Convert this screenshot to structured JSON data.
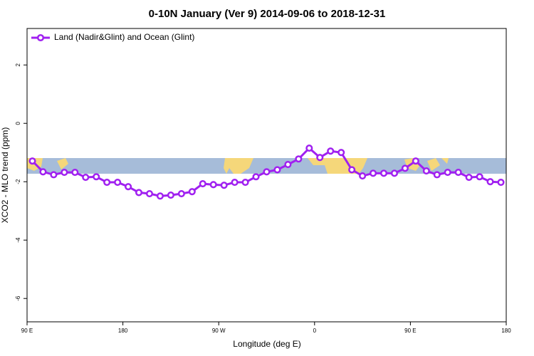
{
  "chart_data": {
    "type": "line",
    "title": "0-10N January (Ver 9)   2014-09-06 to 2018-12-31",
    "x_label": "Longitude (deg E)",
    "y_label": "XCO2 - MLO trend (ppm)",
    "x": [
      95,
      105,
      115,
      125,
      135,
      145,
      155,
      165,
      175,
      185,
      195,
      205,
      215,
      225,
      235,
      245,
      255,
      265,
      275,
      285,
      295,
      305,
      315,
      325,
      335,
      345,
      355,
      365,
      375,
      385,
      395,
      405,
      415,
      425,
      435,
      445,
      455,
      465,
      475,
      485,
      495,
      505,
      515,
      525,
      535
    ],
    "series": [
      {
        "name": "Land (Nadir&Glint) and Ocean (Glint)",
        "color": "#a020f0",
        "values": [
          -1.29,
          -1.66,
          -1.76,
          -1.68,
          -1.68,
          -1.85,
          -1.83,
          -2.02,
          -2.02,
          -2.17,
          -2.37,
          -2.41,
          -2.49,
          -2.46,
          -2.41,
          -2.34,
          -2.07,
          -2.1,
          -2.12,
          -2.02,
          -2.02,
          -1.83,
          -1.66,
          -1.59,
          -1.41,
          -1.22,
          -0.85,
          -1.17,
          -0.95,
          -1.0,
          -1.59,
          -1.8,
          -1.71,
          -1.71,
          -1.71,
          -1.54,
          -1.29,
          -1.63,
          -1.76,
          -1.68,
          -1.68,
          -1.85,
          -1.83,
          -2.0,
          -2.02
        ]
      }
    ],
    "xlim": [
      90,
      540
    ],
    "xticks": [
      {
        "value": 90,
        "label": "90 E"
      },
      {
        "value": 180,
        "label": "180"
      },
      {
        "value": 270,
        "label": "90 W"
      },
      {
        "value": 360,
        "label": "0"
      },
      {
        "value": 450,
        "label": "90 E"
      },
      {
        "value": 540,
        "label": "180"
      }
    ],
    "ylim": [
      -6.8,
      3.25
    ],
    "yticks": [
      -6,
      -4,
      -2,
      0,
      2
    ],
    "legend": "top-left"
  }
}
